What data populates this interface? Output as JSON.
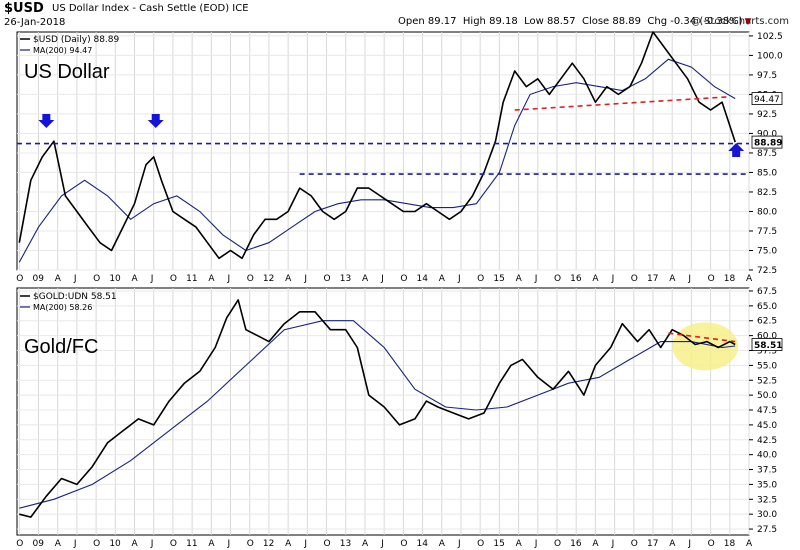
{
  "header": {
    "symbol": "$USD",
    "description": "US Dollar Index - Cash Settle (EOD)  ICE",
    "date": "26-Jan-2018",
    "open_label": "Open",
    "open": "89.17",
    "high_label": "High",
    "high": "89.18",
    "low_label": "Low",
    "low": "88.57",
    "close_label": "Close",
    "close": "88.89",
    "chg_label": "Chg",
    "chg": "-0.34 (-0.38%)",
    "watermark": "@ StockCharts.com"
  },
  "chart_data": [
    {
      "type": "line",
      "title": "US Dollar",
      "legend": [
        "$USD (Daily) 88.89",
        "MA(200) 94.47"
      ],
      "ylim": [
        72.5,
        103
      ],
      "yticks": [
        "72.5",
        "75.0",
        "77.5",
        "80.0",
        "82.5",
        "85.0",
        "87.5",
        "90.0",
        "92.5",
        "95.0",
        "97.5",
        "100.0",
        "102.5"
      ],
      "xticks": [
        "O",
        "09",
        "A",
        "J",
        "O",
        "10",
        "A",
        "J",
        "O",
        "11",
        "A",
        "J",
        "O",
        "12",
        "A",
        "J",
        "O",
        "13",
        "A",
        "J",
        "O",
        "14",
        "A",
        "J",
        "O",
        "15",
        "A",
        "J",
        "O",
        "16",
        "A",
        "J",
        "O",
        "17",
        "A",
        "J",
        "O",
        "18",
        "A"
      ],
      "last_value": "88.89",
      "ma_value": "94.47",
      "series": [
        {
          "x": [
            2008.75,
            2008.9,
            2009.05,
            2009.2,
            2009.35,
            2009.5,
            2009.65,
            2009.8,
            2009.95,
            2010.1,
            2010.25,
            2010.4,
            2010.5,
            2010.6,
            2010.75,
            2010.9,
            2011.05,
            2011.2,
            2011.35,
            2011.5,
            2011.65,
            2011.8,
            2011.95,
            2012.1,
            2012.25,
            2012.4,
            2012.55,
            2012.7,
            2012.85,
            2013.0,
            2013.15,
            2013.3,
            2013.45,
            2013.6,
            2013.75,
            2013.9,
            2014.05,
            2014.2,
            2014.35,
            2014.5,
            2014.65,
            2014.8,
            2014.95,
            2015.05,
            2015.2,
            2015.35,
            2015.5,
            2015.65,
            2015.8,
            2015.95,
            2016.1,
            2016.25,
            2016.4,
            2016.55,
            2016.7,
            2016.85,
            2017.0,
            2017.15,
            2017.3,
            2017.45,
            2017.6,
            2017.75,
            2017.9,
            2018.0,
            2018.07
          ],
          "values": [
            76,
            84,
            87,
            89,
            82,
            80,
            78,
            76,
            75,
            78,
            81,
            86,
            87,
            84,
            80,
            79,
            78,
            76,
            74,
            75,
            74,
            77,
            79,
            79,
            80,
            83,
            82,
            80,
            79,
            80,
            83,
            83,
            82,
            81,
            80,
            80,
            81,
            80,
            79,
            80,
            82,
            85,
            89,
            94,
            98,
            96,
            97,
            95,
            97,
            99,
            97,
            94,
            96,
            95,
            96,
            99,
            103,
            101,
            99,
            97,
            94,
            93,
            94,
            91,
            88.89
          ]
        },
        {
          "x": [
            2008.75,
            2009.0,
            2009.3,
            2009.6,
            2009.9,
            2010.2,
            2010.5,
            2010.8,
            2011.1,
            2011.4,
            2011.7,
            2012.0,
            2012.3,
            2012.6,
            2012.9,
            2013.2,
            2013.5,
            2013.8,
            2014.1,
            2014.4,
            2014.7,
            2015.0,
            2015.2,
            2015.4,
            2015.7,
            2016.0,
            2016.3,
            2016.6,
            2016.9,
            2017.2,
            2017.5,
            2017.8,
            2018.07
          ],
          "values": [
            73.5,
            78,
            82,
            84,
            82,
            79,
            81,
            82,
            80,
            77,
            75,
            76,
            78,
            80,
            81,
            81.5,
            81.5,
            81,
            80.5,
            80.5,
            81,
            85,
            91,
            95,
            96,
            96.5,
            96,
            95.5,
            97,
            99.5,
            98.5,
            96,
            94.47
          ]
        }
      ],
      "annotations": {
        "support_line_level": 88.7,
        "lower_line_level": 84.8,
        "trend_line": [
          [
            2015.2,
            93
          ],
          [
            2018.0,
            94.7
          ]
        ],
        "arrows": [
          "down",
          "down",
          "up"
        ]
      }
    },
    {
      "type": "line",
      "title": "Gold/FC",
      "legend": [
        "$GOLD:UDN 58.51",
        "MA(200) 58.26"
      ],
      "ylim": [
        26.5,
        68
      ],
      "yticks": [
        "27.5",
        "30.0",
        "32.5",
        "35.0",
        "37.5",
        "40.0",
        "42.5",
        "45.0",
        "47.5",
        "50.0",
        "52.5",
        "55.0",
        "57.5",
        "60.0",
        "62.5",
        "65.0",
        "67.5"
      ],
      "xticks": [
        "O",
        "09",
        "A",
        "J",
        "O",
        "10",
        "A",
        "J",
        "O",
        "11",
        "A",
        "J",
        "O",
        "12",
        "A",
        "J",
        "O",
        "13",
        "A",
        "J",
        "O",
        "14",
        "A",
        "J",
        "O",
        "15",
        "A",
        "J",
        "O",
        "16",
        "A",
        "J",
        "O",
        "17",
        "A",
        "J",
        "O",
        "18",
        "A"
      ],
      "last_value": "58.51",
      "series": [
        {
          "x": [
            2008.75,
            2008.9,
            2009.1,
            2009.3,
            2009.5,
            2009.7,
            2009.9,
            2010.1,
            2010.3,
            2010.5,
            2010.7,
            2010.9,
            2011.1,
            2011.3,
            2011.45,
            2011.6,
            2011.7,
            2011.85,
            2012.0,
            2012.2,
            2012.4,
            2012.6,
            2012.8,
            2013.0,
            2013.15,
            2013.3,
            2013.5,
            2013.7,
            2013.9,
            2014.05,
            2014.2,
            2014.4,
            2014.6,
            2014.8,
            2015.0,
            2015.15,
            2015.3,
            2015.5,
            2015.7,
            2015.9,
            2016.1,
            2016.25,
            2016.45,
            2016.6,
            2016.8,
            2016.95,
            2017.1,
            2017.25,
            2017.4,
            2017.55,
            2017.7,
            2017.85,
            2018.0,
            2018.07
          ],
          "values": [
            30,
            29.5,
            33,
            36,
            35,
            38,
            42,
            44,
            46,
            45,
            49,
            52,
            54,
            58,
            63,
            66,
            61,
            60,
            59,
            62,
            64,
            64,
            61,
            61,
            58,
            50,
            48,
            45,
            46,
            49,
            48,
            47,
            46,
            47,
            52,
            55,
            56,
            53,
            51,
            54,
            50,
            55,
            58,
            62,
            59,
            61,
            58,
            61,
            60,
            58.5,
            59,
            58,
            59,
            58.51
          ]
        },
        {
          "x": [
            2008.75,
            2009.2,
            2009.7,
            2010.2,
            2010.7,
            2011.2,
            2011.7,
            2012.2,
            2012.7,
            2013.1,
            2013.5,
            2013.9,
            2014.3,
            2014.7,
            2015.1,
            2015.5,
            2015.9,
            2016.3,
            2016.7,
            2017.1,
            2017.5,
            2017.9,
            2018.07
          ],
          "values": [
            31,
            32.5,
            35,
            39,
            44,
            49,
            55,
            61,
            62.5,
            62.5,
            58,
            51,
            48,
            47.5,
            48,
            50,
            52,
            53,
            56,
            59,
            59,
            58,
            58.26
          ]
        }
      ],
      "annotations": {
        "trend_line": [
          [
            2017.2,
            60.4
          ],
          [
            2018.07,
            59.0
          ]
        ],
        "highlight": "yellow ellipse"
      }
    }
  ],
  "colors": {
    "price": "#000000",
    "ma": "#1a237e",
    "dashed_blue": "#1a1aa8",
    "dashed_red": "#e02020",
    "arrow": "#1515d8",
    "highlight": "#f6f08a"
  }
}
